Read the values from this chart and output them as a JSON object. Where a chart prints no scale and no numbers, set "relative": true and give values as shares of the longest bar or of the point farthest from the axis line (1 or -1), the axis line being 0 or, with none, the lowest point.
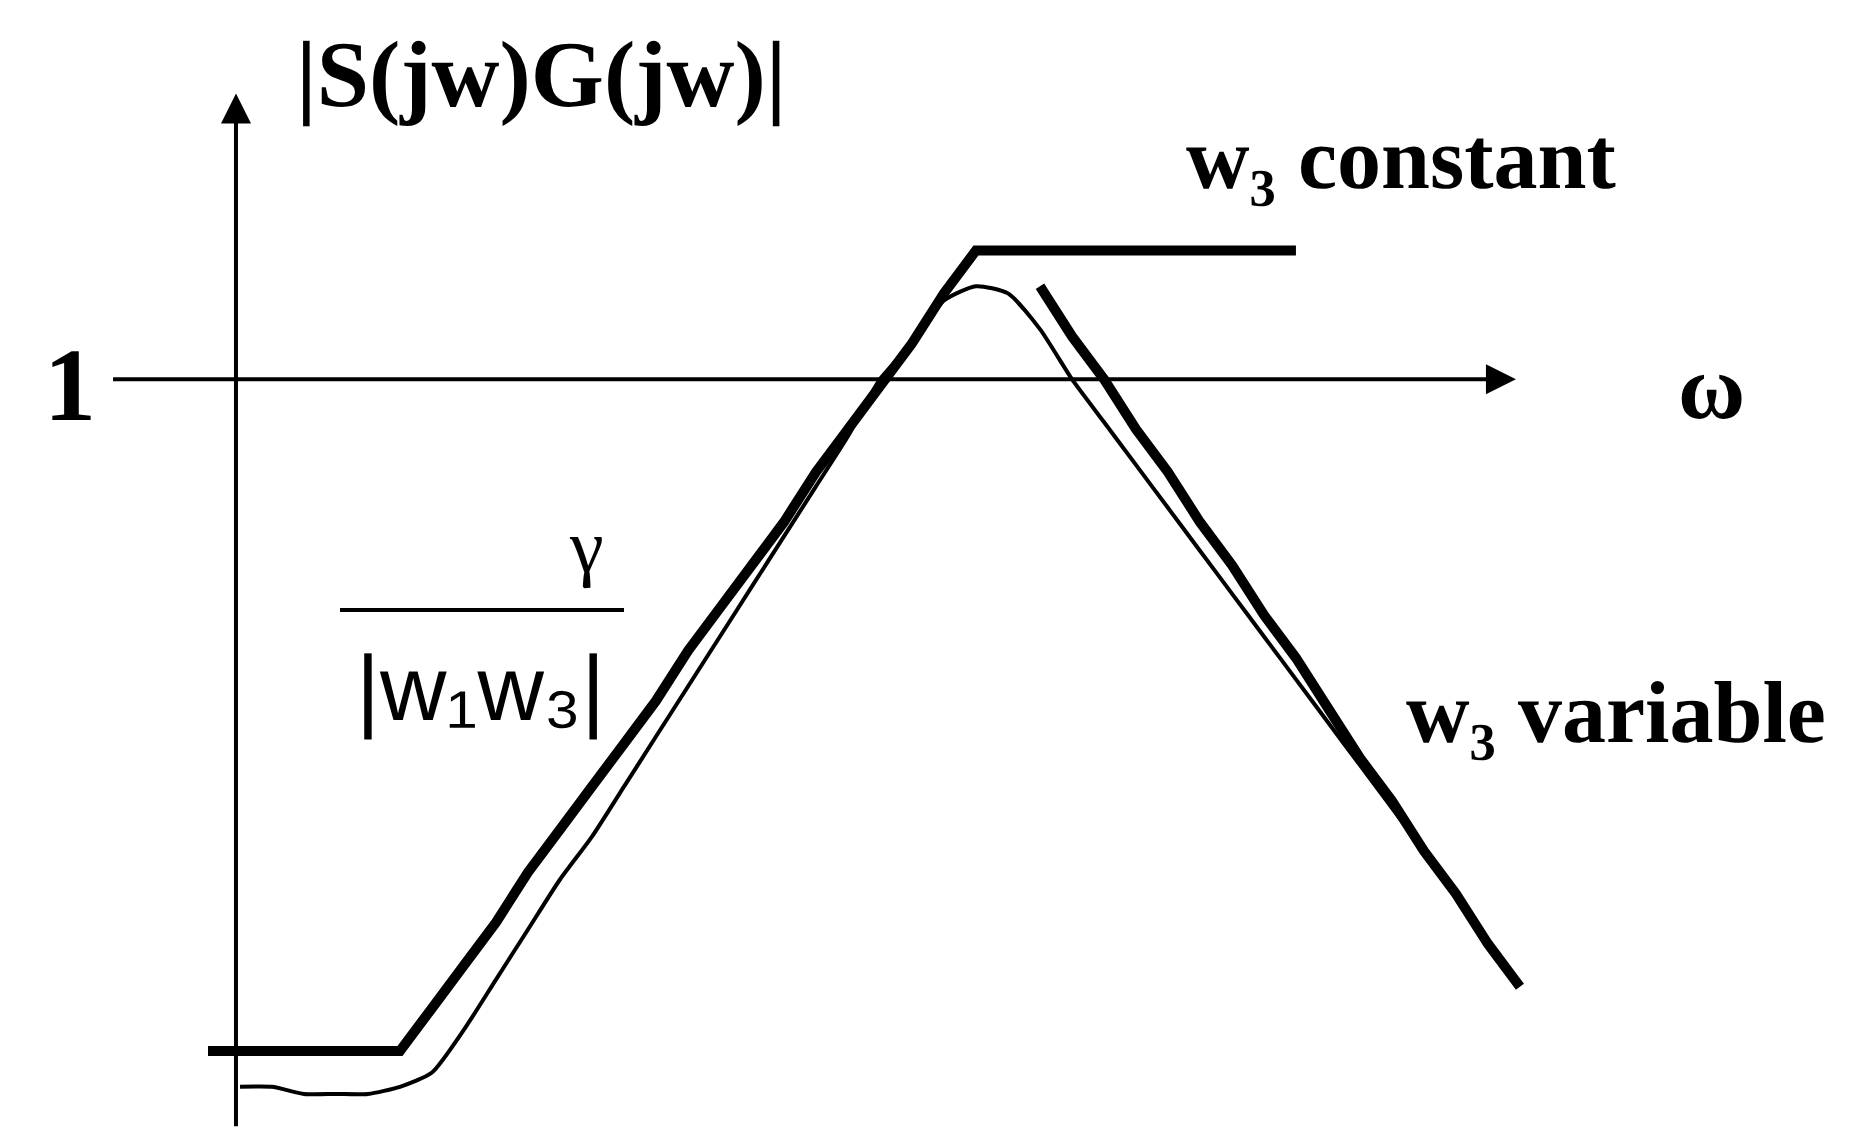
{
  "chart_data": {
    "type": "line",
    "relative": true,
    "ylabel": "|S(jw)G(jw)|",
    "xlabel": "ω",
    "legend": false,
    "categories": [
      null,
      null,
      null,
      null,
      null,
      null,
      null,
      null,
      null,
      null,
      null,
      null,
      null,
      null,
      null,
      null,
      null,
      null,
      null,
      null,
      null,
      null,
      null,
      null,
      null,
      null,
      null,
      null,
      null,
      null,
      null,
      null,
      null,
      null,
      null,
      null,
      null,
      null,
      null,
      null,
      null,
      null
    ],
    "series": [
      {
        "name": "w₃ constant",
        "color": "#000000",
        "values": [
          -0.94,
          -0.94,
          -0.94,
          -0.94,
          -0.94,
          -0.94,
          -0.94,
          -0.88,
          -0.82,
          -0.76,
          -0.69,
          -0.63,
          -0.57,
          -0.51,
          -0.45,
          -0.38,
          -0.32,
          -0.26,
          -0.2,
          -0.13,
          -0.07,
          -0.01,
          0.05,
          0.12,
          0.18,
          0.18,
          0.18,
          0.18,
          0.18,
          0.18,
          0.18,
          0.18,
          0.18,
          0.18,
          0.18,
          null,
          null,
          null,
          null,
          null,
          null,
          null
        ]
      },
      {
        "name": "w₃ variable",
        "color": "#000000",
        "values": [
          null,
          null,
          null,
          null,
          null,
          null,
          null,
          null,
          null,
          null,
          null,
          null,
          null,
          null,
          null,
          null,
          null,
          null,
          null,
          null,
          null,
          null,
          null,
          null,
          null,
          null,
          0.13,
          0.06,
          0.0,
          -0.07,
          -0.13,
          -0.2,
          -0.26,
          -0.33,
          -0.39,
          -0.46,
          -0.53,
          -0.59,
          -0.66,
          -0.72,
          -0.79,
          -0.85
        ]
      },
      {
        "color": "#000000",
        "values": [
          null,
          -0.99,
          -0.99,
          -1.0,
          -1.0,
          -1.0,
          -0.99,
          -0.97,
          -0.91,
          -0.84,
          -0.77,
          -0.7,
          -0.64,
          -0.57,
          -0.5,
          -0.43,
          -0.36,
          -0.29,
          -0.22,
          -0.15,
          -0.08,
          0.0,
          0.05,
          0.11,
          0.13,
          0.12,
          0.07,
          0.0,
          -0.06,
          -0.12,
          -0.18,
          -0.24,
          -0.3,
          -0.36,
          -0.42,
          -0.48,
          -0.54,
          -0.6,
          -0.66,
          -0.72,
          null,
          null
        ]
      }
    ],
    "ref_lines": [
      {
        "axis": "y",
        "value": 0
      }
    ],
    "annotations": [
      "1",
      "γ",
      "|w₁w₃|"
    ]
  }
}
